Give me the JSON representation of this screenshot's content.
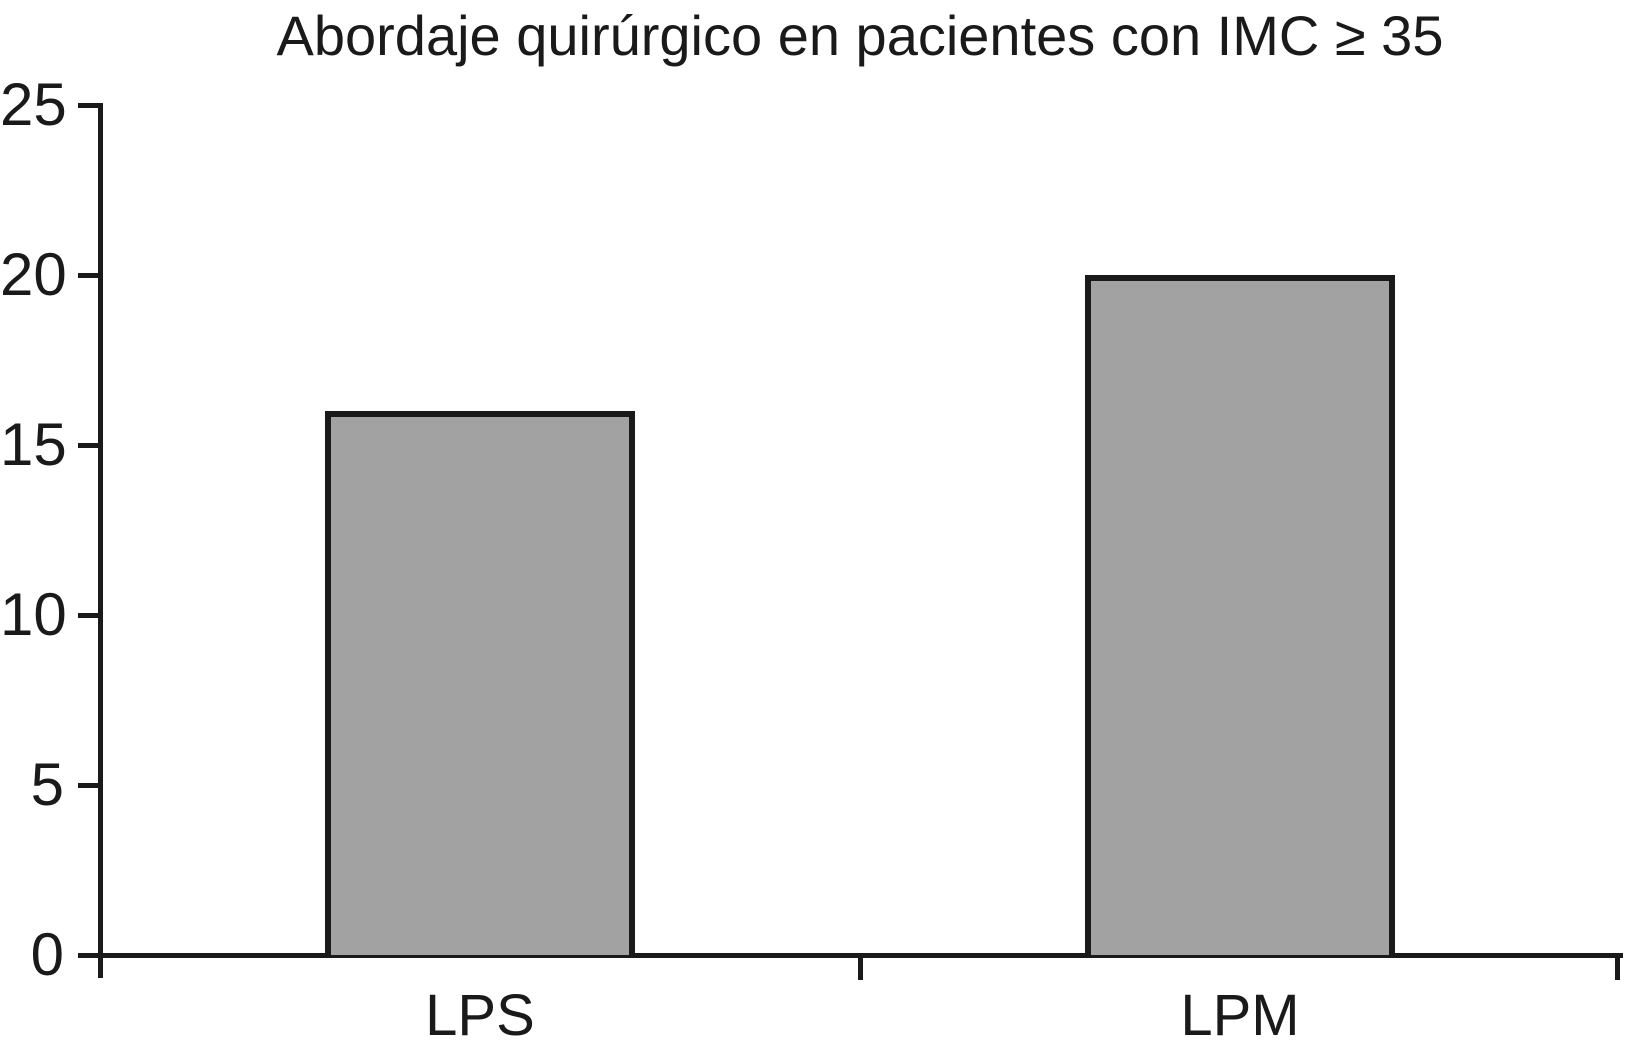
{
  "figure": {
    "background_color": "#ffffff"
  },
  "chart_data": {
    "type": "bar",
    "title": "Abordaje quirúrgico en pacientes con IMC ≥ 35",
    "categories": [
      "LPS",
      "LPM"
    ],
    "values": [
      16,
      20
    ],
    "xlabel": "",
    "ylabel": "",
    "ylim": [
      0,
      25
    ],
    "yticks": [
      0,
      5,
      10,
      15,
      20,
      25
    ],
    "grid": false,
    "legend": false,
    "bar_fill_color": "#a2a2a2",
    "bar_border_color": "#1a1a1a",
    "axis_color": "#1a1a1a",
    "text_color": "#1a1a1a"
  }
}
